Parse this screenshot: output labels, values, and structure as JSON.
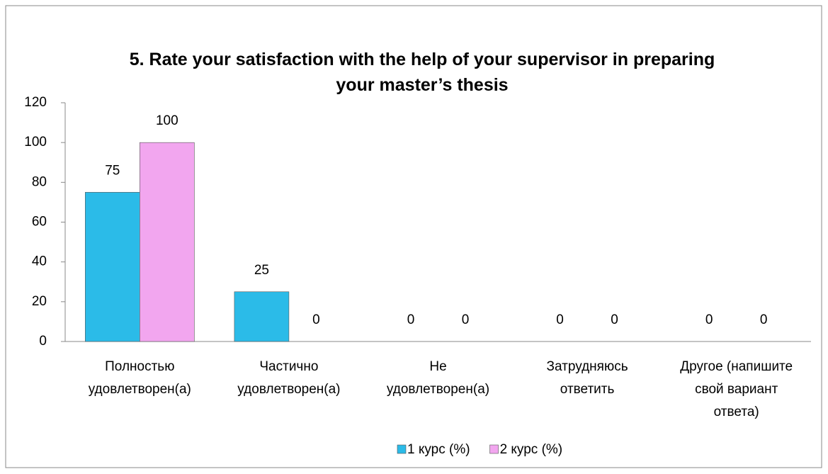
{
  "chart_data": {
    "type": "bar",
    "title": "5. Rate your satisfaction with the help of your supervisor in preparing\nyour master’s thesis",
    "categories": [
      "Полностью\nудовлетворен(а)",
      "Частично\nудовлетворен(а)",
      "Не\nудовлетворен(а)",
      "Затрудняюсь\nответить",
      "Другое (напишите\nсвой вариант\nответа)"
    ],
    "series": [
      {
        "name": "1 курс (%)",
        "color": "#2bbbe8",
        "values": [
          75,
          25,
          0,
          0,
          0
        ]
      },
      {
        "name": "2 курс (%)",
        "color": "#f2a6ef",
        "values": [
          100,
          0,
          0,
          0,
          0
        ]
      }
    ],
    "ylim": [
      0,
      120
    ],
    "yticks": [
      0,
      20,
      40,
      60,
      80,
      100,
      120
    ],
    "grid": false,
    "legend": "bottom"
  }
}
